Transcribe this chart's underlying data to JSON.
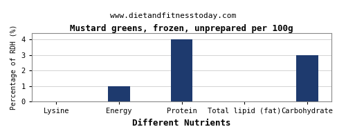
{
  "title": "Mustard greens, frozen, unprepared per 100g",
  "subtitle": "www.dietandfitnesstoday.com",
  "xlabel": "Different Nutrients",
  "ylabel": "Percentage of RDH (%)",
  "categories": [
    "Lysine",
    "Energy",
    "Protein",
    "Total lipid (fat)",
    "Carbohydrate"
  ],
  "values": [
    0.0,
    1.0,
    4.0,
    0.0,
    3.0
  ],
  "bar_color": "#1e3a6e",
  "ylim": [
    0,
    4.4
  ],
  "yticks": [
    0.0,
    1.0,
    2.0,
    3.0,
    4.0
  ],
  "background_color": "#ffffff",
  "plot_bg_color": "#ffffff",
  "grid_color": "#cccccc",
  "title_fontsize": 9,
  "subtitle_fontsize": 8,
  "xlabel_fontsize": 9,
  "ylabel_fontsize": 7,
  "tick_fontsize": 7.5
}
